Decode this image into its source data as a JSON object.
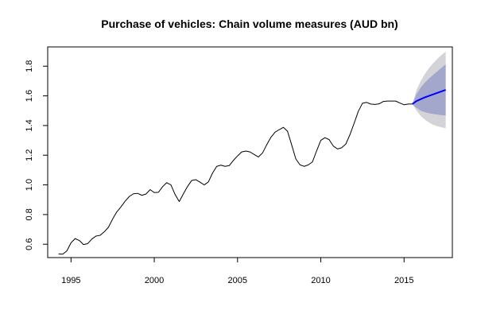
{
  "chart_data": {
    "type": "line",
    "title": "Purchase of vehicles: Chain volume measures (AUD bn)",
    "xlabel": "",
    "ylabel": "",
    "xlim": [
      1993.6,
      2017.9
    ],
    "ylim": [
      0.51,
      1.93
    ],
    "x_ticks": [
      1995,
      2000,
      2005,
      2010,
      2015
    ],
    "y_ticks": [
      0.6,
      0.8,
      1.0,
      1.2,
      1.4,
      1.6,
      1.8
    ],
    "y_tick_labels": [
      "0.6",
      "0.8",
      "1.0",
      "1.2",
      "1.4",
      "1.6",
      "1.8"
    ],
    "grid": false,
    "legend": "none",
    "colors": {
      "history": "#000000",
      "forecast": "#0000ff",
      "interval_95": "#d4d4d8",
      "interval_80": "#a3a7cc",
      "axis": "#000000"
    },
    "series": [
      {
        "role": "history",
        "x": [
          1994.25,
          1994.5,
          1994.75,
          1995.0,
          1995.25,
          1995.5,
          1995.75,
          1996.0,
          1996.25,
          1996.5,
          1996.75,
          1997.0,
          1997.25,
          1997.5,
          1997.75,
          1998.0,
          1998.25,
          1998.5,
          1998.75,
          1999.0,
          1999.25,
          1999.5,
          1999.75,
          2000.0,
          2000.25,
          2000.5,
          2000.75,
          2001.0,
          2001.25,
          2001.5,
          2001.75,
          2002.0,
          2002.25,
          2002.5,
          2002.75,
          2003.0,
          2003.25,
          2003.5,
          2003.75,
          2004.0,
          2004.25,
          2004.5,
          2004.75,
          2005.0,
          2005.25,
          2005.5,
          2005.75,
          2006.0,
          2006.25,
          2006.5,
          2006.75,
          2007.0,
          2007.25,
          2007.5,
          2007.75,
          2008.0,
          2008.25,
          2008.5,
          2008.75,
          2009.0,
          2009.25,
          2009.5,
          2009.75,
          2010.0,
          2010.25,
          2010.5,
          2010.75,
          2011.0,
          2011.25,
          2011.5,
          2011.75,
          2012.0,
          2012.25,
          2012.5,
          2012.75,
          2013.0,
          2013.25,
          2013.5,
          2013.75,
          2014.0,
          2014.25,
          2014.5,
          2014.75,
          2015.0,
          2015.25,
          2015.5
        ],
        "values": [
          0.535,
          0.533,
          0.555,
          0.61,
          0.638,
          0.625,
          0.598,
          0.604,
          0.635,
          0.655,
          0.66,
          0.684,
          0.715,
          0.77,
          0.818,
          0.852,
          0.89,
          0.922,
          0.94,
          0.943,
          0.93,
          0.938,
          0.968,
          0.948,
          0.95,
          0.988,
          1.015,
          1.0,
          0.935,
          0.888,
          0.94,
          0.99,
          1.03,
          1.035,
          1.018,
          1.0,
          1.02,
          1.08,
          1.125,
          1.133,
          1.125,
          1.13,
          1.165,
          1.195,
          1.222,
          1.228,
          1.222,
          1.205,
          1.188,
          1.215,
          1.27,
          1.32,
          1.355,
          1.372,
          1.388,
          1.362,
          1.27,
          1.175,
          1.135,
          1.125,
          1.135,
          1.155,
          1.23,
          1.3,
          1.318,
          1.305,
          1.262,
          1.242,
          1.25,
          1.275,
          1.338,
          1.415,
          1.495,
          1.55,
          1.556,
          1.545,
          1.542,
          1.546,
          1.562,
          1.565,
          1.565,
          1.565,
          1.552,
          1.54,
          1.545,
          1.545
        ]
      },
      {
        "role": "forecast",
        "x": [
          2015.5,
          2015.75,
          2016.0,
          2016.25,
          2016.5,
          2016.75,
          2017.0,
          2017.25,
          2017.5
        ],
        "values": [
          1.545,
          1.565,
          1.578,
          1.59,
          1.6,
          1.61,
          1.62,
          1.63,
          1.64
        ],
        "lo80": [
          1.545,
          1.518,
          1.5,
          1.49,
          1.483,
          1.478,
          1.474,
          1.47,
          1.468
        ],
        "hi80": [
          1.545,
          1.612,
          1.656,
          1.69,
          1.717,
          1.742,
          1.766,
          1.79,
          1.812
        ],
        "lo95": [
          1.545,
          1.5,
          1.465,
          1.44,
          1.42,
          1.405,
          1.395,
          1.388,
          1.382
        ],
        "hi95": [
          1.545,
          1.64,
          1.7,
          1.748,
          1.788,
          1.82,
          1.85,
          1.876,
          1.898
        ]
      }
    ]
  }
}
